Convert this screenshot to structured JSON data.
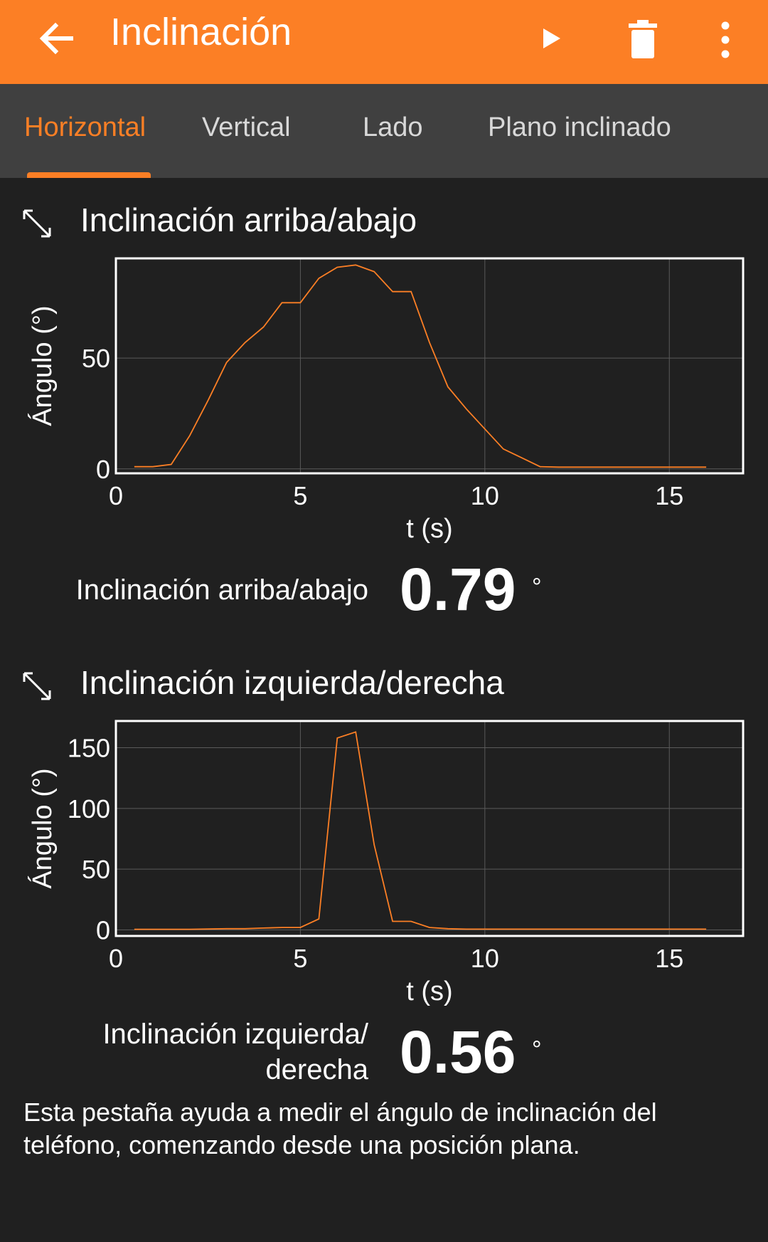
{
  "appbar": {
    "title": "Inclinación",
    "back_icon": "arrow-left-icon",
    "play_icon": "play-icon",
    "delete_icon": "trash-icon",
    "more_icon": "more-vertical-icon"
  },
  "tabs": [
    {
      "label": "Horizontal",
      "active": true
    },
    {
      "label": "Vertical",
      "active": false
    },
    {
      "label": "Lado",
      "active": false
    },
    {
      "label": "Plano inclinado",
      "active": false
    }
  ],
  "colors": {
    "accent": "#fc7f25",
    "background": "#202020",
    "tabbar": "#404040",
    "line": "#fc7f25"
  },
  "sections": [
    {
      "title": "Inclinación arriba/abajo",
      "expand_icon": "expand-icon",
      "readout_label": "Inclinación arriba/abajo",
      "readout_value": "0.79",
      "readout_unit": "°"
    },
    {
      "title": "Inclinación izquierda/derecha",
      "expand_icon": "expand-icon",
      "readout_label_line1": "Inclinación izquierda/",
      "readout_label_line2": "derecha",
      "readout_value": "0.56",
      "readout_unit": "°"
    }
  ],
  "description": "Esta pestaña ayuda a medir el ángulo de inclinación del teléfono, comenzando desde una posición plana.",
  "chart_data": [
    {
      "type": "line",
      "xlabel": "t (s)",
      "ylabel": "Ángulo (°)",
      "xlim": [
        0,
        17
      ],
      "ylim": [
        -2,
        95
      ],
      "xticks": [
        0,
        5,
        10,
        15
      ],
      "yticks": [
        0,
        50
      ],
      "grid": true,
      "series": [
        {
          "x": [
            0.5,
            1.0,
            1.5,
            2.0,
            2.5,
            3.0,
            3.5,
            4.0,
            4.5,
            5.0,
            5.5,
            6.0,
            6.5,
            7.0,
            7.5,
            8.0,
            8.5,
            9.0,
            9.5,
            10.0,
            10.5,
            11.0,
            11.5,
            12.0,
            12.5,
            13.0,
            14.0,
            15.0,
            16.0
          ],
          "y": [
            1,
            1,
            2,
            15,
            31,
            48,
            57,
            64,
            75,
            75,
            86,
            91,
            92,
            89,
            80,
            80,
            57,
            37,
            27,
            18,
            9,
            5,
            1,
            0.8,
            0.8,
            0.8,
            0.8,
            0.8,
            0.8
          ]
        }
      ]
    },
    {
      "type": "line",
      "xlabel": "t (s)",
      "ylabel": "Ángulo (°)",
      "xlim": [
        0,
        17
      ],
      "ylim": [
        -5,
        172
      ],
      "xticks": [
        0,
        5,
        10,
        15
      ],
      "yticks": [
        0,
        50,
        100,
        150
      ],
      "grid": true,
      "series": [
        {
          "x": [
            0.5,
            1.0,
            2.0,
            3.0,
            3.5,
            4.0,
            4.5,
            5.0,
            5.5,
            6.0,
            6.5,
            7.0,
            7.5,
            8.0,
            8.5,
            9.0,
            9.5,
            10.0,
            11.0,
            12.0,
            13.0,
            14.0,
            15.0,
            16.0
          ],
          "y": [
            0.5,
            0.5,
            0.5,
            1,
            1,
            1.5,
            2,
            2,
            9,
            158,
            163,
            70,
            7,
            7,
            2,
            1,
            0.6,
            0.6,
            0.6,
            0.6,
            0.6,
            0.6,
            0.6,
            0.6
          ]
        }
      ]
    }
  ]
}
